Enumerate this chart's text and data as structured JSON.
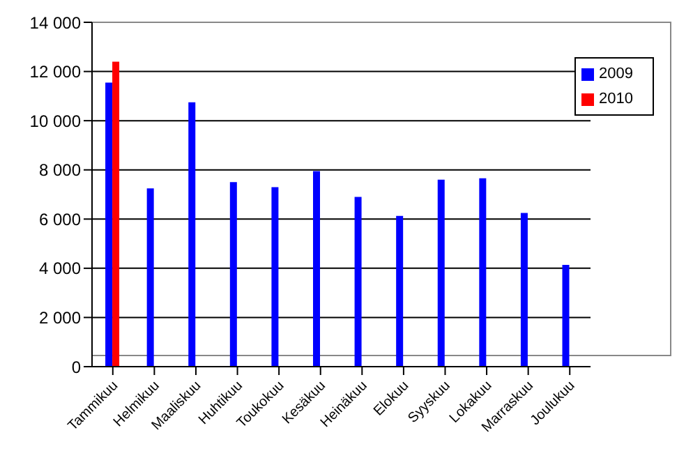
{
  "chart_data": {
    "type": "bar",
    "categories": [
      "Tammikuu",
      "Helmikuu",
      "Maaliskuu",
      "Huhtikuu",
      "Toukokuu",
      "Kesäkuu",
      "Heinäkuu",
      "Elokuu",
      "Syyskuu",
      "Lokakuu",
      "Marraskuu",
      "Joulukuu"
    ],
    "series": [
      {
        "name": "2009",
        "color": "#0000ff",
        "values": [
          11550,
          7250,
          10750,
          7500,
          7300,
          7950,
          6900,
          6130,
          7600,
          7660,
          6250,
          4140
        ]
      },
      {
        "name": "2010",
        "color": "#ff0000",
        "values": [
          12400,
          null,
          null,
          null,
          null,
          null,
          null,
          null,
          null,
          null,
          null,
          null
        ]
      }
    ],
    "ylim": [
      0,
      14000
    ],
    "yticks": [
      {
        "value": 0,
        "label": "0"
      },
      {
        "value": 2000,
        "label": "2 000"
      },
      {
        "value": 4000,
        "label": "4 000"
      },
      {
        "value": 6000,
        "label": "6 000"
      },
      {
        "value": 8000,
        "label": "8 000"
      },
      {
        "value": 10000,
        "label": "10 000"
      },
      {
        "value": 12000,
        "label": "12 000"
      },
      {
        "value": 14000,
        "label": "14 000"
      }
    ],
    "grid": "y",
    "legend": "top right"
  }
}
